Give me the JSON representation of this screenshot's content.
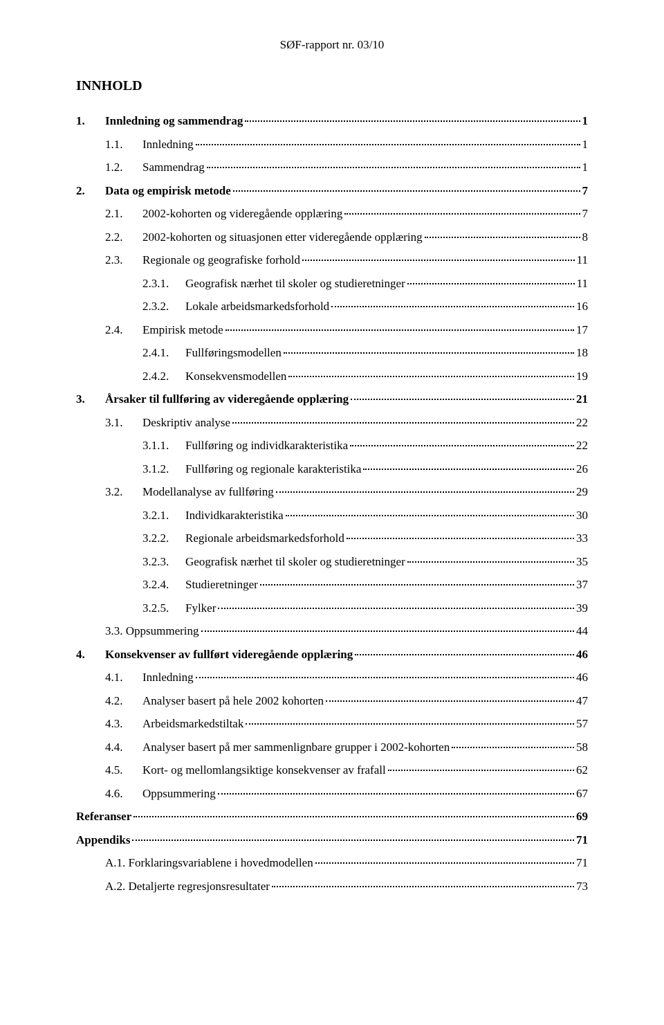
{
  "header": "SØF-rapport nr. 03/10",
  "title": "INNHOLD",
  "entries": [
    {
      "num": "1.",
      "text": "Innledning og sammendrag",
      "page": "1",
      "level": 0,
      "bold": true,
      "gap": false
    },
    {
      "num": "1.1.",
      "text": "Innledning",
      "page": "1",
      "level": 1,
      "bold": false,
      "gap": false
    },
    {
      "num": "1.2.",
      "text": "Sammendrag",
      "page": "1",
      "level": 1,
      "bold": false,
      "gap": false
    },
    {
      "num": "2.",
      "text": "Data og empirisk metode",
      "page": "7",
      "level": 0,
      "bold": true,
      "gap": true
    },
    {
      "num": "2.1.",
      "text": "2002-kohorten og videregående opplæring",
      "page": "7",
      "level": 1,
      "bold": false,
      "gap": false
    },
    {
      "num": "2.2.",
      "text": "2002-kohorten og situasjonen etter videregående opplæring",
      "page": "8",
      "level": 1,
      "bold": false,
      "gap": false
    },
    {
      "num": "2.3.",
      "text": "Regionale og geografiske forhold",
      "page": "11",
      "level": 1,
      "bold": false,
      "gap": false
    },
    {
      "num": "2.3.1.",
      "text": "Geografisk nærhet til skoler og studieretninger",
      "page": "11",
      "level": 2,
      "bold": false,
      "gap": false
    },
    {
      "num": "2.3.2.",
      "text": "Lokale arbeidsmarkedsforhold",
      "page": "16",
      "level": 2,
      "bold": false,
      "gap": false
    },
    {
      "num": "2.4.",
      "text": "Empirisk metode",
      "page": "17",
      "level": 1,
      "bold": false,
      "gap": true
    },
    {
      "num": "2.4.1.",
      "text": "Fullføringsmodellen",
      "page": "18",
      "level": 2,
      "bold": false,
      "gap": false
    },
    {
      "num": "2.4.2.",
      "text": "Konsekvensmodellen",
      "page": "19",
      "level": 2,
      "bold": false,
      "gap": false
    },
    {
      "num": "3.",
      "text": "Årsaker til fullføring av videregående opplæring",
      "page": "21",
      "level": 0,
      "bold": true,
      "gap": true
    },
    {
      "num": "3.1.",
      "text": "Deskriptiv analyse",
      "page": "22",
      "level": 1,
      "bold": false,
      "gap": false
    },
    {
      "num": "3.1.1.",
      "text": "Fullføring og individkarakteristika",
      "page": "22",
      "level": 2,
      "bold": false,
      "gap": false
    },
    {
      "num": "3.1.2.",
      "text": "Fullføring og regionale karakteristika",
      "page": "26",
      "level": 2,
      "bold": false,
      "gap": false
    },
    {
      "num": "3.2.",
      "text": "Modellanalyse av fullføring",
      "page": "29",
      "level": 1,
      "bold": false,
      "gap": true
    },
    {
      "num": "3.2.1.",
      "text": "Individkarakteristika",
      "page": "30",
      "level": 2,
      "bold": false,
      "gap": false
    },
    {
      "num": "3.2.2.",
      "text": "Regionale arbeidsmarkedsforhold",
      "page": "33",
      "level": 2,
      "bold": false,
      "gap": false
    },
    {
      "num": "3.2.3.",
      "text": "Geografisk nærhet til skoler og studieretninger",
      "page": "35",
      "level": 2,
      "bold": false,
      "gap": false
    },
    {
      "num": "3.2.4.",
      "text": "Studieretninger",
      "page": "37",
      "level": 2,
      "bold": false,
      "gap": false
    },
    {
      "num": "3.2.5.",
      "text": "Fylker",
      "page": "39",
      "level": 2,
      "bold": false,
      "gap": false
    },
    {
      "num": "",
      "text": "3.3. Oppsummering",
      "page": "44",
      "level": 1,
      "bold": false,
      "gap": true,
      "nonum": true
    },
    {
      "num": "4.",
      "text": "Konsekvenser av fullført videregående opplæring",
      "page": "46",
      "level": 0,
      "bold": true,
      "gap": true
    },
    {
      "num": "4.1.",
      "text": "Innledning",
      "page": "46",
      "level": 1,
      "bold": false,
      "gap": false
    },
    {
      "num": "4.2.",
      "text": "Analyser basert på hele 2002 kohorten",
      "page": "47",
      "level": 1,
      "bold": false,
      "gap": false
    },
    {
      "num": "4.3.",
      "text": "Arbeidsmarkedstiltak",
      "page": "57",
      "level": 1,
      "bold": false,
      "gap": false
    },
    {
      "num": "4.4.",
      "text": "Analyser basert på mer sammenlignbare grupper i 2002-kohorten",
      "page": "58",
      "level": 1,
      "bold": false,
      "gap": false
    },
    {
      "num": "4.5.",
      "text": "Kort- og mellomlangsiktige konsekvenser av frafall",
      "page": "62",
      "level": 1,
      "bold": false,
      "gap": false
    },
    {
      "num": "4.6.",
      "text": "Oppsummering",
      "page": "67",
      "level": 1,
      "bold": false,
      "gap": false
    },
    {
      "num": "",
      "text": "Referanser",
      "page": "69",
      "level": 0,
      "bold": true,
      "gap": true,
      "nonum": true
    },
    {
      "num": "",
      "text": "Appendiks",
      "page": "71",
      "level": 0,
      "bold": true,
      "gap": true,
      "nonum": true
    },
    {
      "num": "",
      "text": "A.1. Forklaringsvariablene i hovedmodellen",
      "page": "71",
      "level": 1,
      "bold": false,
      "gap": false,
      "nonum": true
    },
    {
      "num": "",
      "text": "A.2. Detaljerte regresjonsresultater",
      "page": "73",
      "level": 1,
      "bold": false,
      "gap": false,
      "nonum": true
    }
  ]
}
